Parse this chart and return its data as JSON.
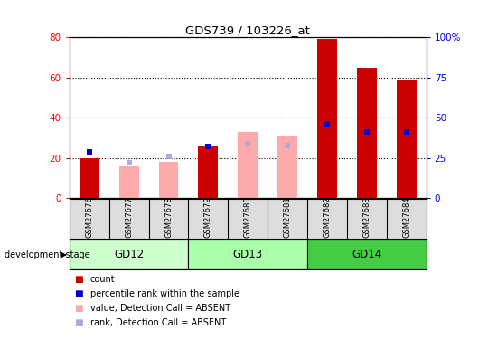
{
  "title": "GDS739 / 103226_at",
  "samples": [
    "GSM27676",
    "GSM27677",
    "GSM27678",
    "GSM27679",
    "GSM27680",
    "GSM27681",
    "GSM27682",
    "GSM27683",
    "GSM27684"
  ],
  "count_values": [
    20,
    0,
    0,
    26,
    0,
    0,
    79,
    65,
    59
  ],
  "percentile_rank_values": [
    29,
    0,
    0,
    32,
    0,
    0,
    46,
    41,
    41
  ],
  "absent_value_values": [
    0,
    16,
    18,
    0,
    33,
    31,
    0,
    0,
    0
  ],
  "absent_rank_values": [
    0,
    22,
    26,
    0,
    34,
    33,
    0,
    0,
    0
  ],
  "count_present": [
    true,
    false,
    false,
    true,
    false,
    false,
    true,
    true,
    true
  ],
  "percentile_present": [
    true,
    false,
    false,
    true,
    false,
    false,
    true,
    true,
    true
  ],
  "absent_value_present": [
    false,
    true,
    true,
    false,
    true,
    true,
    false,
    false,
    false
  ],
  "absent_rank_present": [
    false,
    true,
    true,
    false,
    true,
    true,
    false,
    false,
    false
  ],
  "ylim_left": [
    0,
    80
  ],
  "ylim_right": [
    0,
    100
  ],
  "yticks_left": [
    0,
    20,
    40,
    60,
    80
  ],
  "yticks_right": [
    0,
    25,
    50,
    75,
    100
  ],
  "ytick_labels_right": [
    "0",
    "25",
    "50",
    "75",
    "100%"
  ],
  "ytick_labels_left": [
    "0",
    "20",
    "40",
    "60",
    "80"
  ],
  "bar_width": 0.5,
  "count_color": "#CC0000",
  "percentile_color": "#0000CC",
  "absent_value_color": "#FFAAAA",
  "absent_rank_color": "#AAAADD",
  "bg_color": "#FFFFFF",
  "legend_items": [
    {
      "label": "count",
      "color": "#CC0000"
    },
    {
      "label": "percentile rank within the sample",
      "color": "#0000CC"
    },
    {
      "label": "value, Detection Call = ABSENT",
      "color": "#FFAAAA"
    },
    {
      "label": "rank, Detection Call = ABSENT",
      "color": "#AAAADD"
    }
  ],
  "group_colors": [
    "#CCFFCC",
    "#AAFFAA",
    "#44CC44"
  ],
  "group_labels": [
    "GD12",
    "GD13",
    "GD14"
  ],
  "group_starts": [
    0,
    3,
    6
  ],
  "group_ends": [
    3,
    6,
    9
  ]
}
